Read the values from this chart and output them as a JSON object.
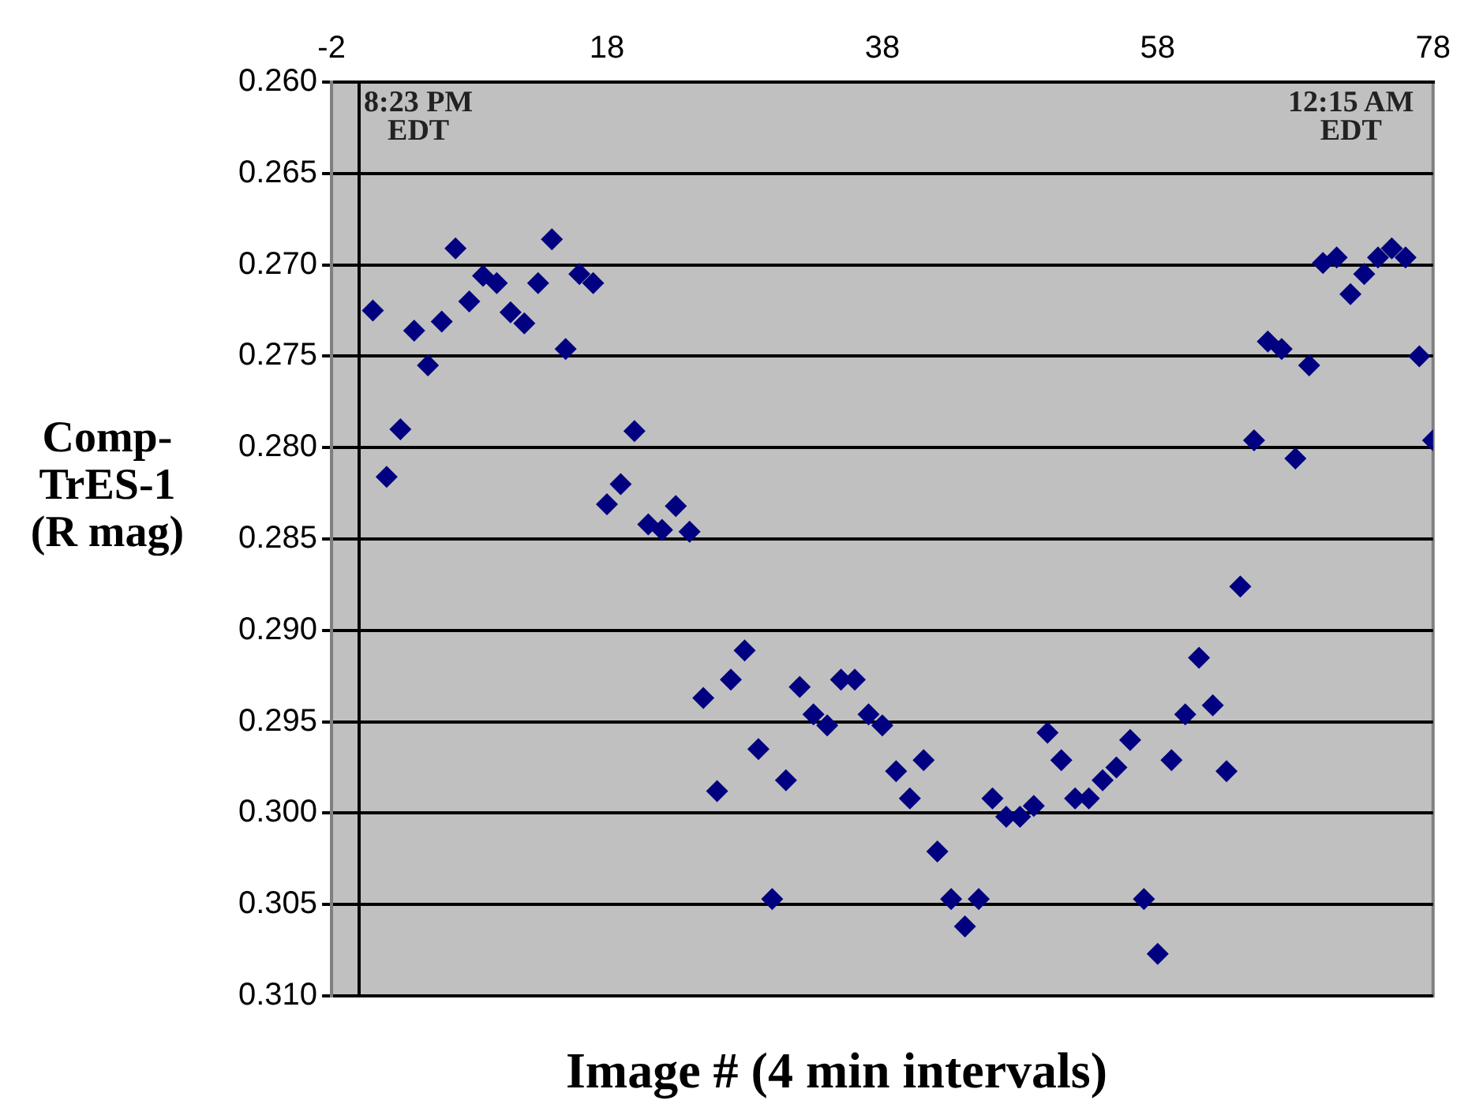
{
  "chart_data": {
    "type": "scatter",
    "xlabel": "Image # (4 min intervals)",
    "ylabel": "Comp-TrES-1 (R mag)",
    "annotations": [
      "8:23 PM EDT",
      "12:15 AM EDT"
    ],
    "x": [
      1,
      2,
      3,
      4,
      5,
      6,
      7,
      8,
      9,
      10,
      11,
      12,
      13,
      14,
      15,
      16,
      17,
      18,
      19,
      20,
      21,
      22,
      23,
      24,
      25,
      26,
      27,
      28,
      29,
      30,
      31,
      32,
      33,
      34,
      35,
      36,
      37,
      38,
      39,
      40,
      41,
      42,
      43,
      44,
      45,
      46,
      47,
      48,
      49,
      50,
      51,
      52,
      53,
      54,
      55,
      56,
      57,
      58,
      59,
      60,
      61,
      62,
      63,
      64,
      65,
      66,
      67,
      68,
      69,
      70,
      71,
      72,
      73,
      74,
      75,
      76,
      77,
      78
    ],
    "series": [
      {
        "color": "#000080",
        "values": [
          0.2725,
          0.2816,
          0.279,
          0.2736,
          0.2755,
          0.2731,
          0.2691,
          0.272,
          0.2706,
          0.271,
          0.2726,
          0.2732,
          0.271,
          0.2686,
          0.2746,
          0.2705,
          0.271,
          0.2831,
          0.282,
          0.2791,
          0.2842,
          0.2845,
          0.2832,
          0.2846,
          0.2937,
          0.2988,
          0.2927,
          0.2911,
          0.2965,
          0.3047,
          0.2982,
          0.2931,
          0.2946,
          0.2952,
          0.2927,
          0.2927,
          0.2946,
          0.2952,
          0.2977,
          0.2992,
          0.2971,
          0.3021,
          0.3047,
          0.3062,
          0.3047,
          0.2992,
          0.3002,
          0.3002,
          0.2996,
          0.2956,
          0.2971,
          0.2992,
          0.2992,
          0.2982,
          0.2975,
          0.296,
          0.3047,
          0.3077,
          0.2971,
          0.2946,
          0.2915,
          0.2941,
          0.2977,
          0.2876,
          0.2796,
          0.2742,
          0.2746,
          0.2806,
          0.2755,
          0.2699,
          0.2696,
          0.2716,
          0.2705,
          0.2696,
          0.2691,
          0.2696,
          0.275,
          0.2796
        ]
      }
    ],
    "xlim": [
      -2,
      78
    ],
    "xticks": [
      -2,
      18,
      38,
      58,
      78
    ],
    "ylim": [
      0.31,
      0.26
    ],
    "yticks": [
      {
        "value": 0.26,
        "label": "0.260"
      },
      {
        "value": 0.265,
        "label": "0.265"
      },
      {
        "value": 0.27,
        "label": "0.270"
      },
      {
        "value": 0.275,
        "label": "0.275"
      },
      {
        "value": 0.28,
        "label": "0.280"
      },
      {
        "value": 0.285,
        "label": "0.285"
      },
      {
        "value": 0.29,
        "label": "0.290"
      },
      {
        "value": 0.295,
        "label": "0.295"
      },
      {
        "value": 0.3,
        "label": "0.300"
      },
      {
        "value": 0.305,
        "label": "0.305"
      },
      {
        "value": 0.31,
        "label": "0.310"
      }
    ],
    "ref_lines": [
      {
        "axis": "x",
        "value": 0,
        "color": "#000000"
      }
    ],
    "grid": "y",
    "legend": false,
    "marker": "diamond"
  }
}
